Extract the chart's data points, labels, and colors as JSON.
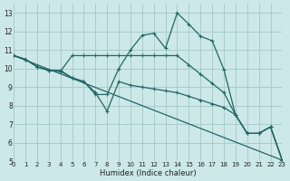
{
  "xlabel": "Humidex (Indice chaleur)",
  "bg_color": "#cce8e8",
  "grid_color": "#aacccc",
  "line_color": "#226666",
  "xlim": [
    0,
    23
  ],
  "ylim": [
    5,
    13.5
  ],
  "xticks": [
    0,
    1,
    2,
    3,
    4,
    5,
    6,
    7,
    8,
    9,
    10,
    11,
    12,
    13,
    14,
    15,
    16,
    17,
    18,
    19,
    20,
    21,
    22,
    23
  ],
  "yticks": [
    5,
    6,
    7,
    8,
    9,
    10,
    11,
    12,
    13
  ],
  "line1_x": [
    0,
    1,
    2,
    3,
    4,
    5,
    6,
    7,
    8,
    9,
    10,
    11,
    12,
    13,
    14,
    15,
    16,
    17,
    18,
    19,
    20,
    21,
    22,
    23
  ],
  "line1_y": [
    10.7,
    10.5,
    10.1,
    9.9,
    9.9,
    9.5,
    9.3,
    8.6,
    8.6,
    10.0,
    11.0,
    11.8,
    11.9,
    11.1,
    13.0,
    12.4,
    11.75,
    11.5,
    9.95,
    7.5,
    6.5,
    6.5,
    6.85,
    5.05
  ],
  "line2_x": [
    0,
    1,
    2,
    3,
    4,
    5,
    6,
    7,
    8,
    9,
    10,
    11,
    12,
    13,
    14,
    15,
    16,
    17,
    18,
    19,
    20,
    21,
    22,
    23
  ],
  "line2_y": [
    10.7,
    10.5,
    10.1,
    9.9,
    9.85,
    10.7,
    10.7,
    10.7,
    10.7,
    10.7,
    10.7,
    10.7,
    10.7,
    10.7,
    10.7,
    10.2,
    9.7,
    9.2,
    8.7,
    7.5,
    6.5,
    6.5,
    6.85,
    5.05
  ],
  "line3_x": [
    0,
    1,
    2,
    3,
    4,
    5,
    6,
    7,
    8,
    9,
    10,
    11,
    12,
    13,
    14,
    15,
    16,
    17,
    18,
    19,
    20,
    21,
    22,
    23
  ],
  "line3_y": [
    10.7,
    10.5,
    10.1,
    9.9,
    9.85,
    9.5,
    9.3,
    8.7,
    7.7,
    9.3,
    9.1,
    9.0,
    8.9,
    8.8,
    8.7,
    8.5,
    8.3,
    8.1,
    7.9,
    7.5,
    6.5,
    6.5,
    6.85,
    5.05
  ],
  "line4_x": [
    0,
    23
  ],
  "line4_y": [
    10.7,
    5.05
  ]
}
